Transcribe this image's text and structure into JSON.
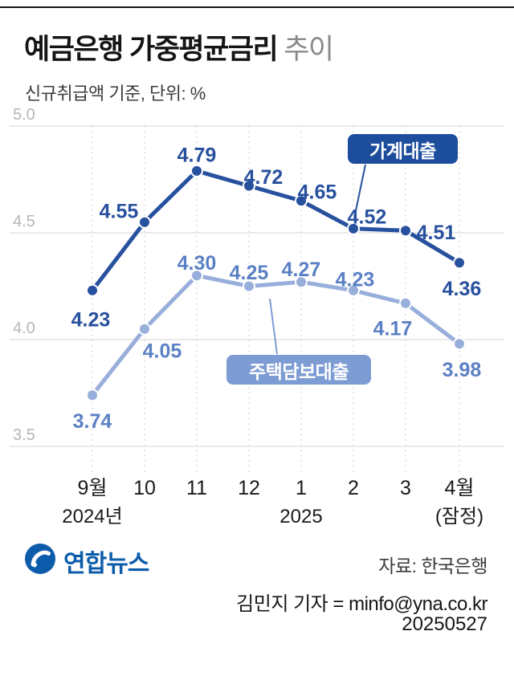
{
  "header": {
    "title_main": "예금은행 가중평균금리",
    "title_sub": "추이",
    "subtitle": "신규취급액 기준, 단위: %"
  },
  "chart_data": {
    "type": "line",
    "x_labels": [
      "9월",
      "10",
      "11",
      "12",
      "1",
      "2",
      "3",
      "4월"
    ],
    "x_sub_labels": [
      {
        "index": 0,
        "label": "2024년"
      },
      {
        "index": 4,
        "label": "2025"
      },
      {
        "index": 7,
        "label": "(잠정)"
      }
    ],
    "y_ticks": [
      5.0,
      4.5,
      4.0,
      3.5
    ],
    "ylim": [
      3.3,
      5.0
    ],
    "unit": "%",
    "grid": "horizontal-solid, vertical-dotted",
    "legend_position": "callout-badges",
    "series": [
      {
        "name": "가계대출",
        "color": "#27509e",
        "label_color": "#27509e",
        "values": [
          4.23,
          4.55,
          4.79,
          4.72,
          4.65,
          4.52,
          4.51,
          4.36
        ]
      },
      {
        "name": "주택담보대출",
        "color": "#98aedb",
        "label_color": "#5b80c4",
        "values": [
          3.74,
          4.05,
          4.3,
          4.25,
          4.27,
          4.23,
          4.17,
          3.98
        ]
      }
    ]
  },
  "badges": {
    "household": "가계대출",
    "mortgage": "주택담보대출"
  },
  "footer": {
    "logo_text": "연합뉴스",
    "source": "자료: 한국은행",
    "byline": "김민지 기자 = minfo@yna.co.kr",
    "date": "20250527"
  },
  "colors": {
    "household_badge": "#1d4e9d",
    "mortgage_badge": "#7e9cd4",
    "grid_line": "#e3e3e3",
    "axis_label": "#b5b5b5",
    "logo_blue": "#0d5cab"
  }
}
